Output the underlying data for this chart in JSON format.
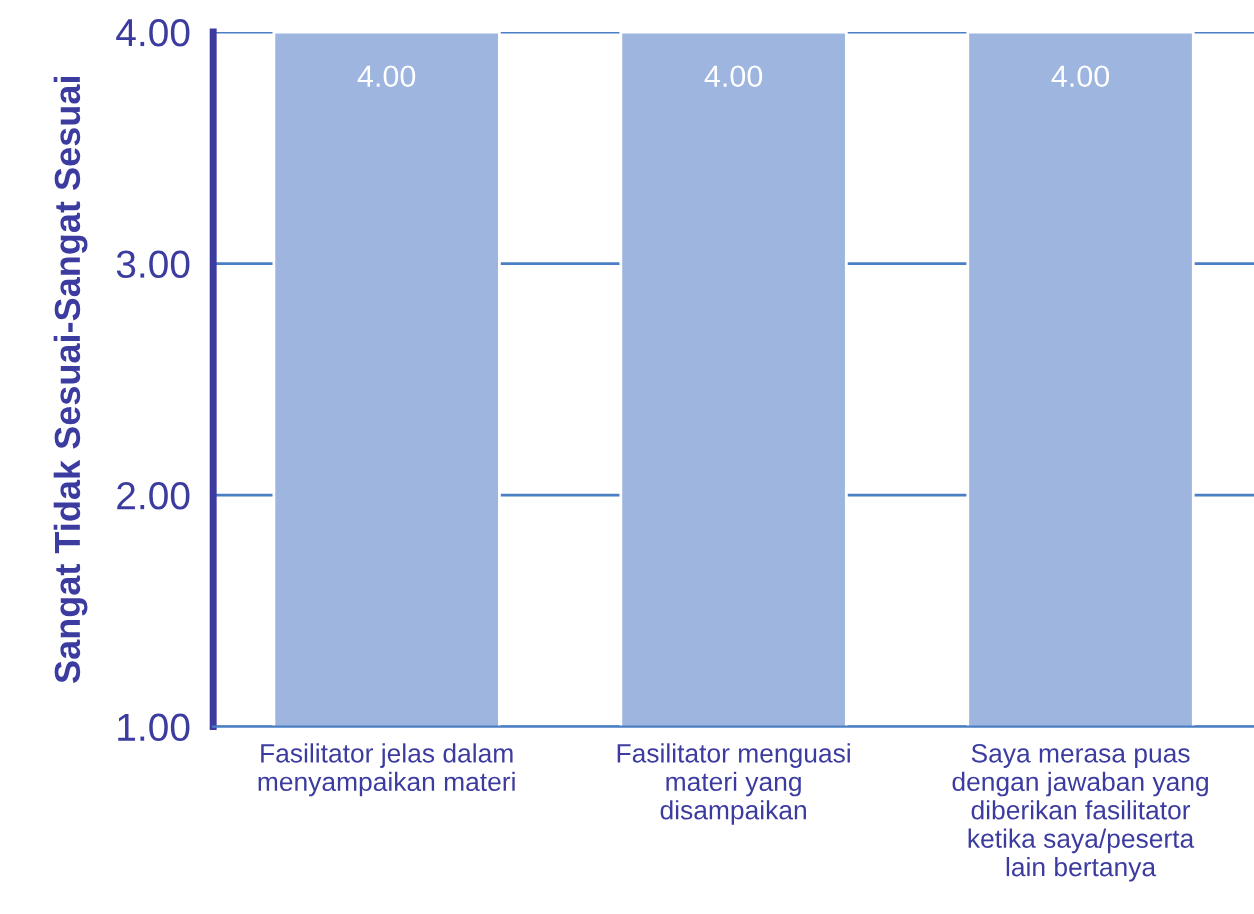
{
  "chart_data": {
    "type": "bar",
    "ylabel": "Sangat Tidak Sesuai-Sangat Sesuai",
    "categories": [
      "Fasilitator jelas dalam\nmenyampaikan materi",
      "Fasilitator menguasi\nmateri yang\ndisampaikan",
      "Saya merasa puas\ndengan jawaban yang\ndiberikan fasilitator\nketika saya/peserta\nlain bertanya"
    ],
    "values": [
      4,
      4,
      4
    ],
    "value_labels": [
      "4.00",
      "4.00",
      "4.00"
    ],
    "color": "#9db5df",
    "ylim": [
      1,
      4
    ],
    "yticks": [
      {
        "value": 1,
        "label": "1.00"
      },
      {
        "value": 2,
        "label": "2.00"
      },
      {
        "value": 3,
        "label": "3.00"
      },
      {
        "value": 4,
        "label": "4.00"
      }
    ],
    "grid": "y"
  }
}
